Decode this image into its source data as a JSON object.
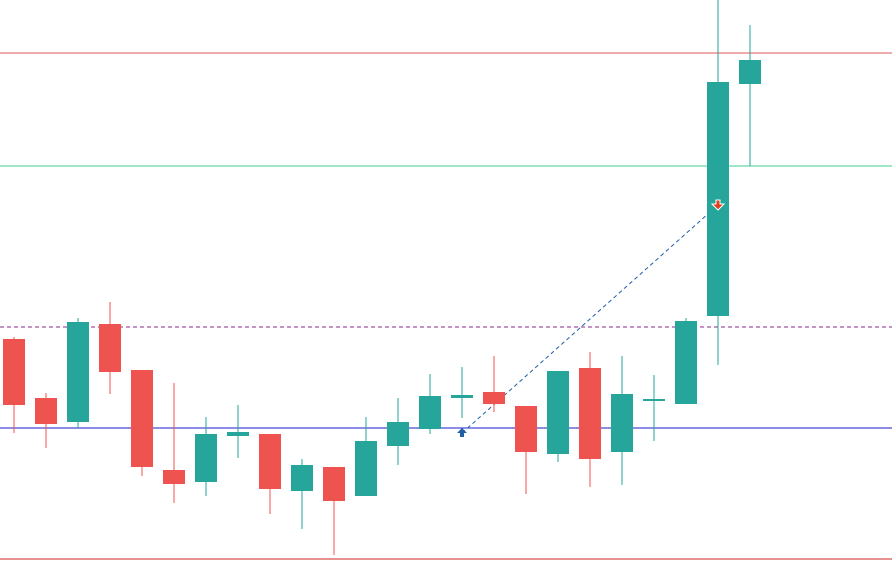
{
  "chart_data": {
    "type": "candlestick",
    "categories": [
      null,
      null,
      null,
      null,
      null,
      null,
      null,
      null,
      null,
      null,
      null,
      null,
      null,
      null,
      null,
      null,
      null,
      null,
      null,
      null,
      null,
      null,
      null,
      null
    ],
    "open": [
      224,
      165,
      141,
      239,
      193,
      93,
      81,
      127,
      129,
      72,
      96,
      67,
      117,
      134,
      165,
      171,
      157,
      109,
      195,
      111,
      163,
      159,
      247,
      479
    ],
    "high": [
      226,
      170,
      245,
      261,
      193,
      180,
      146,
      158,
      129,
      104,
      96,
      146,
      165,
      189,
      196,
      207,
      157,
      192,
      211,
      207,
      188,
      245,
      563,
      538
    ],
    "low": [
      130,
      115,
      135,
      169,
      87,
      60,
      67,
      105,
      49,
      34,
      8,
      67,
      98,
      129,
      145,
      151,
      69,
      101,
      76,
      78,
      122,
      159,
      198,
      397
    ],
    "close": [
      158,
      139,
      241,
      191,
      96,
      79,
      129,
      131,
      74,
      98,
      62,
      122,
      141,
      167,
      168,
      159,
      111,
      192,
      104,
      169,
      164,
      242,
      481,
      503
    ],
    "up_color": "#26a69a",
    "down_color": "#ef5350",
    "ylim": [
      0,
      563
    ],
    "levels": [
      {
        "value": 510,
        "color": "#e05a5a",
        "dashed": false
      },
      {
        "value": 397,
        "color": "#3ecf8e",
        "dashed": false
      },
      {
        "value": 236,
        "color": "#8b2a8b",
        "dashed": true
      },
      {
        "value": 135,
        "color": "#1a1acc",
        "dashed": false
      },
      {
        "value": 4,
        "color": "#cc2222",
        "dashed": false
      }
    ],
    "buy": {
      "index": 14,
      "price": 130,
      "color": "#1f5fa8"
    },
    "sell": {
      "index": 22,
      "price": 358,
      "color": "#e0401f"
    }
  }
}
